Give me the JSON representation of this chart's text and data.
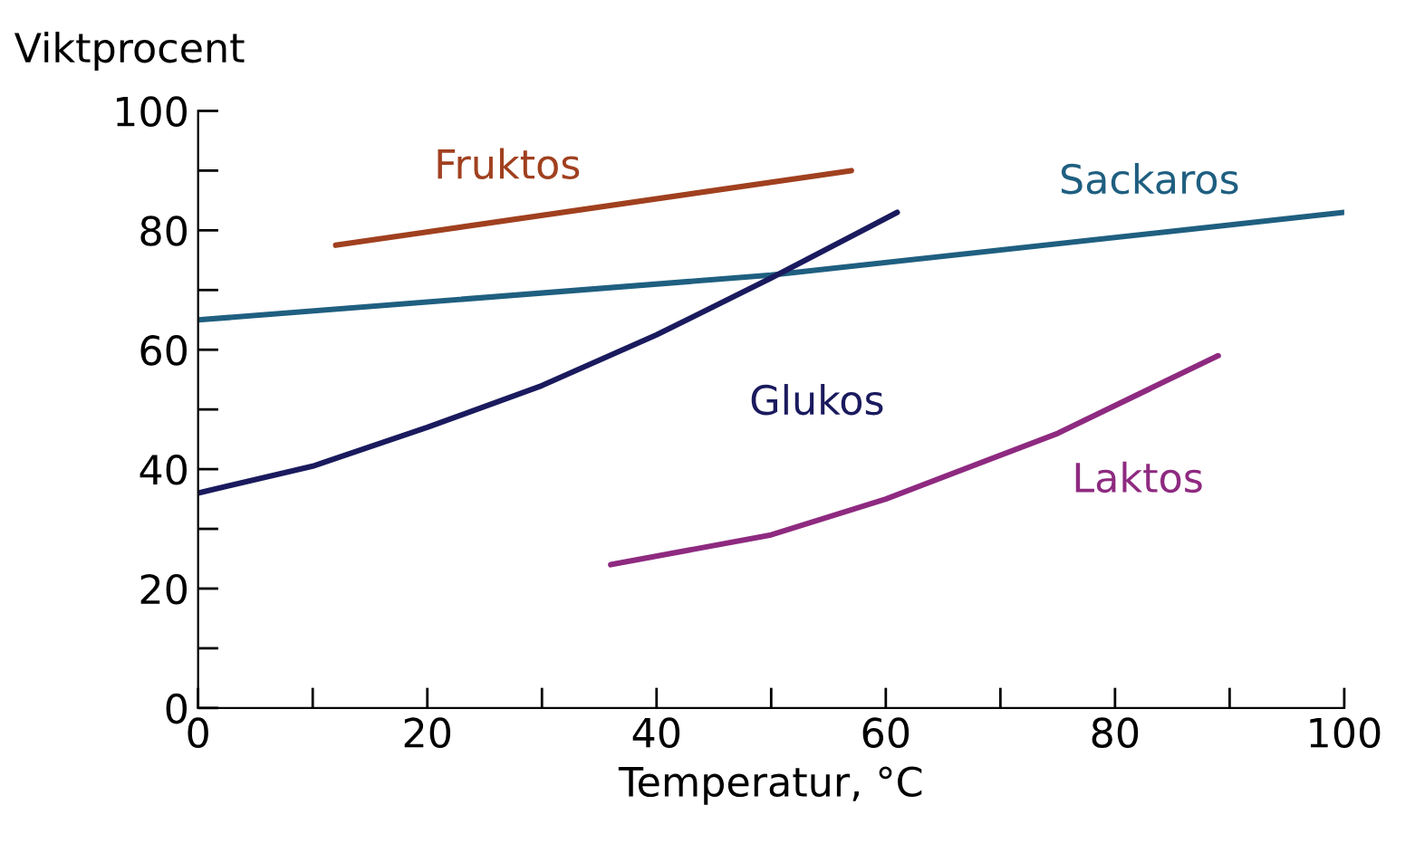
{
  "chart_data": {
    "type": "line",
    "xlabel": "Temperatur, °C",
    "ylabel": "Viktprocent",
    "xlim": [
      0,
      100
    ],
    "ylim": [
      0,
      100
    ],
    "xticks": [
      0,
      {
        "value": 10,
        "label": null
      },
      20,
      {
        "value": 30,
        "label": null
      },
      40,
      {
        "value": 50,
        "label": null
      },
      60,
      {
        "value": 70,
        "label": null
      },
      80,
      {
        "value": 90,
        "label": null
      },
      100
    ],
    "yticks": [
      0,
      {
        "value": 10,
        "label": null
      },
      20,
      {
        "value": 30,
        "label": null
      },
      40,
      {
        "value": 50,
        "label": null
      },
      60,
      {
        "value": 70,
        "label": null
      },
      80,
      {
        "value": 90,
        "label": null
      },
      100
    ],
    "grid": false,
    "legend": false,
    "marker": "none",
    "line_style": "solid",
    "series": [
      {
        "name": "Fruktos",
        "color": "#a0401f",
        "x": [
          12,
          57
        ],
        "values": [
          77.5,
          90
        ]
      },
      {
        "name": "Sackaros",
        "color": "#1f5f80",
        "x": [
          0,
          50,
          100
        ],
        "values": [
          65,
          72.5,
          83
        ]
      },
      {
        "name": "Glukos",
        "color": "#1a1a5e",
        "x": [
          0,
          10,
          20,
          30,
          40,
          50,
          61
        ],
        "values": [
          36,
          40.5,
          47,
          54,
          62.5,
          72,
          83
        ]
      },
      {
        "name": "Laktos",
        "color": "#8e2a80",
        "x": [
          36,
          50,
          60,
          75,
          89
        ],
        "values": [
          24,
          29,
          35,
          46,
          59
        ]
      }
    ]
  }
}
